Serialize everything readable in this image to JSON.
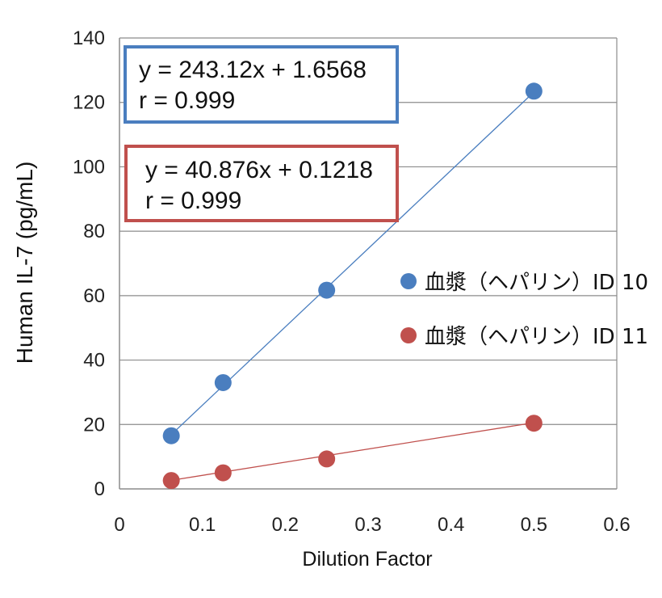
{
  "chart_data": {
    "type": "scatter",
    "xlabel": "Dilution Factor",
    "ylabel": "Human IL-7 (pg/mL)",
    "xlim": [
      0,
      0.6
    ],
    "ylim": [
      0,
      140
    ],
    "xticks": [
      0,
      0.1,
      0.2,
      0.3,
      0.4,
      0.5,
      0.6
    ],
    "yticks": [
      0,
      20,
      40,
      60,
      80,
      100,
      120,
      140
    ],
    "xtick_labels": [
      "0",
      "0.1",
      "0.2",
      "0.3",
      "0.4",
      "0.5",
      "0.6"
    ],
    "ytick_labels": [
      "0",
      "20",
      "40",
      "60",
      "80",
      "100",
      "120",
      "140"
    ],
    "grid": "horizontal",
    "legend_position": "right",
    "series": [
      {
        "name": "血漿（ヘパリン）ID 10",
        "color": "#4a7ebf",
        "x": [
          0.0625,
          0.125,
          0.25,
          0.5
        ],
        "y": [
          16.5,
          33.0,
          61.7,
          123.5
        ],
        "trendline": {
          "slope": 243.12,
          "intercept": 1.6568
        },
        "equation": "y = 243.12x + 1.6568",
        "r_label": "r = 0.999"
      },
      {
        "name": "血漿（ヘパリン）ID 11",
        "color": "#c0504d",
        "x": [
          0.0625,
          0.125,
          0.25,
          0.5
        ],
        "y": [
          2.6,
          5.0,
          9.3,
          20.4
        ],
        "trendline": {
          "slope": 40.876,
          "intercept": 0.1218
        },
        "equation": "y = 40.876x + 0.1218",
        "r_label": "r = 0.999"
      }
    ]
  }
}
